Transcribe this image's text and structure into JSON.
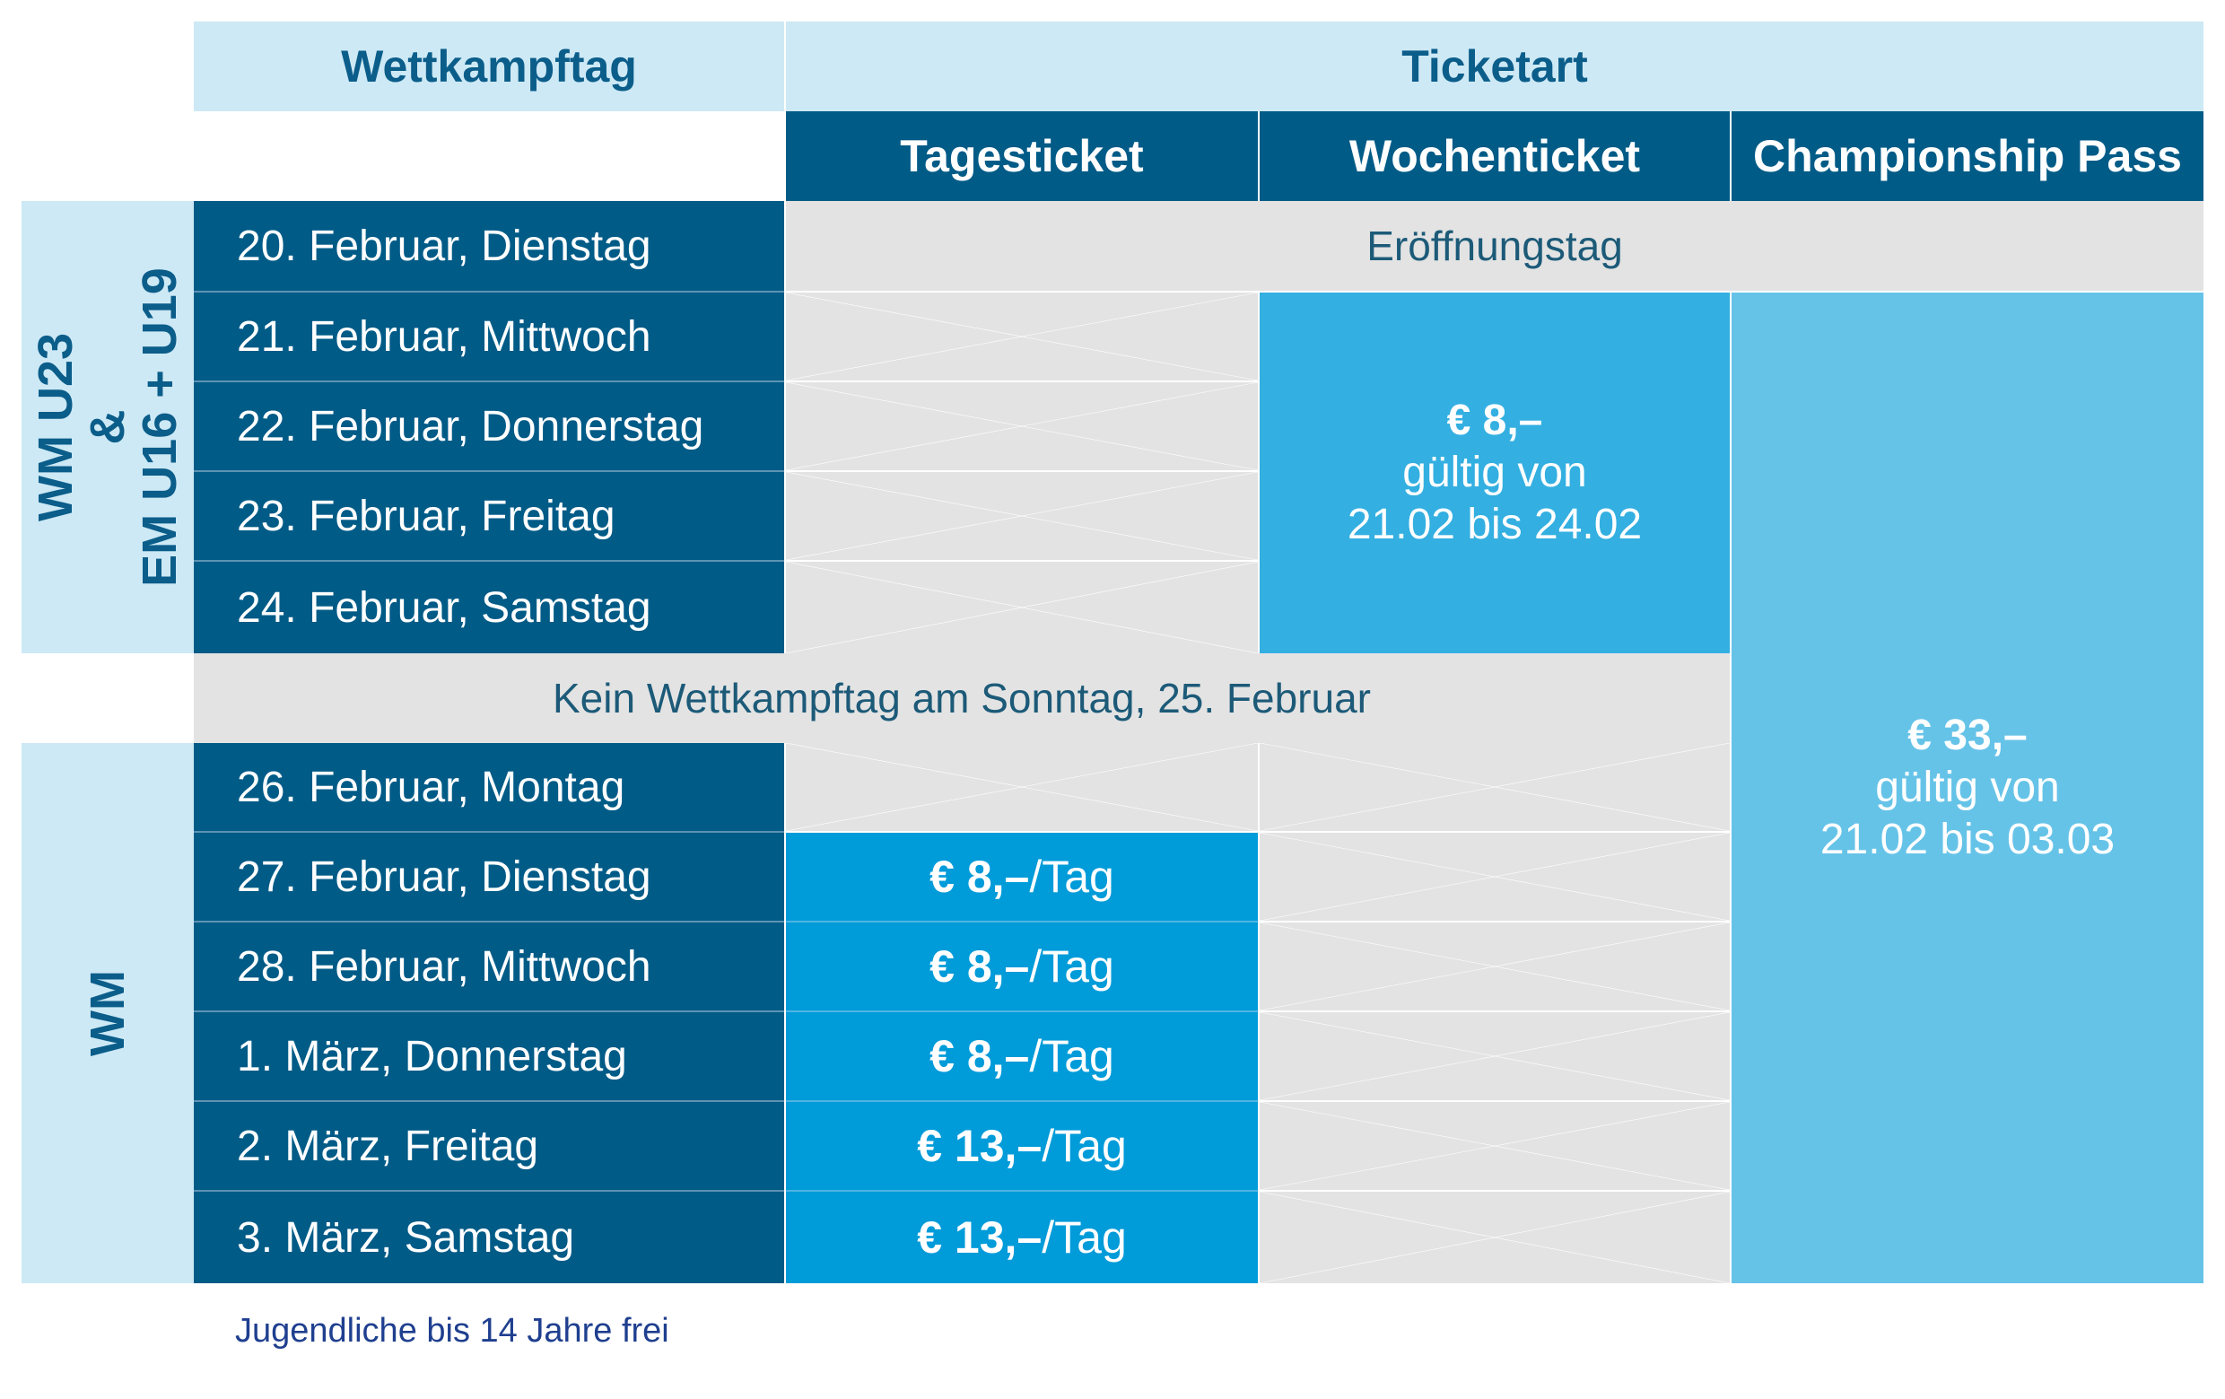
{
  "header": {
    "wettkampftag_label": "Wettkampftag",
    "ticketart_label": "Ticketart",
    "tageticket_label": "Tagesticket",
    "wochenticket_label": "Wochenticket",
    "championship_label": "Championship Pass"
  },
  "groups": {
    "group1_line1": "WM U23",
    "group1_line2": "&",
    "group1_line3": "EM U16 + U19",
    "group2_label": "WM"
  },
  "days": [
    {
      "label": "20. Februar, Dienstag"
    },
    {
      "label": "21. Februar, Mittwoch"
    },
    {
      "label": "22. Februar, Donnerstag"
    },
    {
      "label": "23. Februar, Freitag"
    },
    {
      "label": "24. Februar, Samstag"
    },
    {
      "label": "26. Februar, Montag"
    },
    {
      "label": "27. Februar, Dienstag"
    },
    {
      "label": "28. Februar, Mittwoch"
    },
    {
      "label": "1. März, Donnerstag"
    },
    {
      "label": "2. März, Freitag"
    },
    {
      "label": "3. März, Samstag"
    }
  ],
  "opening_day_text": "Eröffnungstag",
  "no_competition_text": "Kein Wettkampftag am Sonntag, 25. Februar",
  "day_prices": [
    {
      "price": "€ 8,–",
      "unit": "/Tag"
    },
    {
      "price": "€ 8,–",
      "unit": "/Tag"
    },
    {
      "price": "€ 8,–",
      "unit": "/Tag"
    },
    {
      "price": "€ 13,–",
      "unit": "/Tag"
    },
    {
      "price": "€ 13,–",
      "unit": "/Tag"
    }
  ],
  "week_ticket": {
    "price": "€ 8,–",
    "line1": "gültig von",
    "line2": "21.02 bis 24.02"
  },
  "championship_pass": {
    "price": "€ 33,–",
    "line1": "gültig von",
    "line2": "21.02 bis 03.03"
  },
  "footnote": "Jugendliche bis 14 Jahre frei",
  "colors": {
    "dark_blue": "#015b87",
    "light_blue_header": "#cde9f5",
    "day_ticket_blue": "#009bd9",
    "week_ticket_blue": "#33afe1",
    "pass_blue": "#66c3e8",
    "unavailable_grey": "#e3e3e3"
  }
}
